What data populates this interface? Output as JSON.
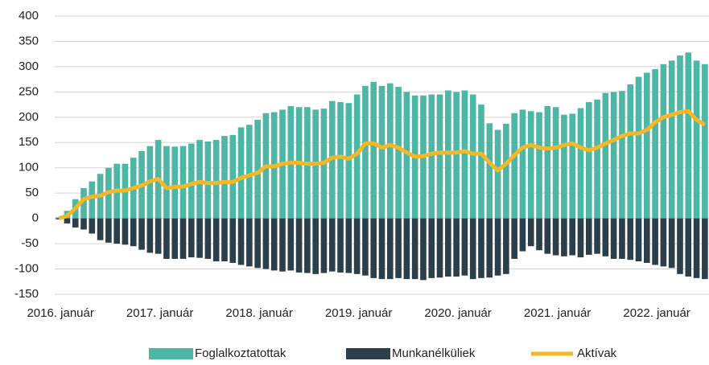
{
  "chart_data": {
    "type": "bar",
    "categories": [
      "2016. január",
      null,
      null,
      null,
      null,
      null,
      null,
      null,
      null,
      null,
      null,
      null,
      "2017. január",
      null,
      null,
      null,
      null,
      null,
      null,
      null,
      null,
      null,
      null,
      null,
      "2018. január",
      null,
      null,
      null,
      null,
      null,
      null,
      null,
      null,
      null,
      null,
      null,
      "2019. január",
      null,
      null,
      null,
      null,
      null,
      null,
      null,
      null,
      null,
      null,
      null,
      "2020. január",
      null,
      null,
      null,
      null,
      null,
      null,
      null,
      null,
      null,
      null,
      null,
      "2021. január",
      null,
      null,
      null,
      null,
      null,
      null,
      null,
      null,
      null,
      null,
      null,
      "2022. január",
      null,
      null,
      null,
      null,
      null,
      null
    ],
    "series": [
      {
        "name": "Foglalkoztatottak",
        "kind": "bar",
        "color": "#4db6a4",
        "values": [
          2,
          15,
          38,
          60,
          73,
          88,
          100,
          108,
          108,
          120,
          133,
          143,
          155,
          143,
          142,
          143,
          148,
          155,
          152,
          155,
          163,
          165,
          180,
          185,
          195,
          208,
          210,
          215,
          222,
          220,
          220,
          215,
          217,
          232,
          230,
          228,
          245,
          262,
          270,
          262,
          267,
          260,
          250,
          243,
          243,
          245,
          245,
          253,
          250,
          253,
          245,
          225,
          188,
          175,
          187,
          208,
          215,
          212,
          210,
          222,
          220,
          205,
          207,
          218,
          230,
          235,
          248,
          250,
          252,
          265,
          280,
          288,
          295,
          305,
          312,
          322,
          328,
          312,
          305
        ]
      },
      {
        "name": "Munkanélküliek",
        "kind": "bar",
        "color": "#2b3f4a",
        "values": [
          -2,
          -10,
          -18,
          -22,
          -30,
          -43,
          -48,
          -50,
          -52,
          -55,
          -62,
          -68,
          -70,
          -80,
          -80,
          -80,
          -77,
          -78,
          -80,
          -85,
          -85,
          -88,
          -92,
          -95,
          -98,
          -100,
          -103,
          -105,
          -103,
          -107,
          -108,
          -110,
          -108,
          -105,
          -107,
          -108,
          -110,
          -113,
          -118,
          -120,
          -120,
          -118,
          -120,
          -120,
          -122,
          -118,
          -117,
          -115,
          -115,
          -113,
          -120,
          -118,
          -117,
          -113,
          -110,
          -80,
          -65,
          -55,
          -63,
          -70,
          -73,
          -75,
          -73,
          -77,
          -72,
          -70,
          -75,
          -80,
          -80,
          -82,
          -85,
          -88,
          -92,
          -95,
          -98,
          -110,
          -115,
          -118,
          -120
        ]
      },
      {
        "name": "Aktívak",
        "kind": "line",
        "color": "#f2b829",
        "values": [
          0,
          5,
          20,
          38,
          43,
          45,
          52,
          55,
          55,
          60,
          65,
          73,
          78,
          60,
          62,
          63,
          68,
          72,
          70,
          70,
          72,
          72,
          80,
          85,
          90,
          103,
          103,
          108,
          110,
          110,
          108,
          108,
          110,
          120,
          122,
          118,
          128,
          148,
          148,
          140,
          145,
          140,
          130,
          122,
          123,
          128,
          130,
          130,
          130,
          133,
          128,
          128,
          110,
          95,
          108,
          125,
          140,
          145,
          140,
          138,
          140,
          145,
          148,
          140,
          135,
          140,
          148,
          155,
          163,
          168,
          168,
          175,
          190,
          200,
          205,
          210,
          212,
          195,
          185
        ]
      }
    ],
    "ylim": [
      -150,
      400
    ],
    "yticks": [
      -150,
      -100,
      -50,
      0,
      50,
      100,
      150,
      200,
      250,
      300,
      350,
      400
    ],
    "grid": true,
    "legend": "bottom"
  }
}
